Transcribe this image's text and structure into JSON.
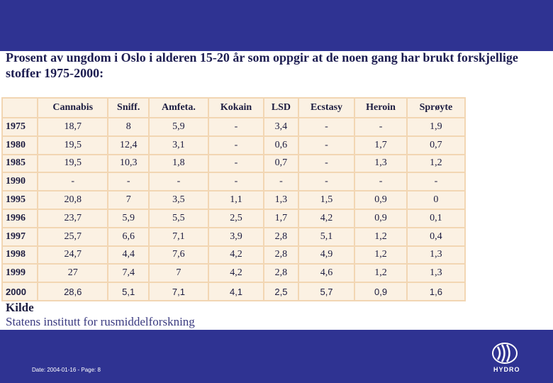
{
  "header": {
    "title": "Prosent av ungdom i Oslo i alderen 15-20 år som oppgir at de noen gang har brukt forskjellige stoffer 1975-2000:"
  },
  "table": {
    "columns": [
      "Cannabis",
      "Sniff.",
      "Amfeta.",
      "Kokain",
      "LSD",
      "Ecstasy",
      "Heroin",
      "Sprøyte"
    ],
    "rows": [
      [
        "1975",
        "18,7",
        "8",
        "5,9",
        "-",
        "3,4",
        "-",
        "-",
        "1,9"
      ],
      [
        "1980",
        "19,5",
        "12,4",
        "3,1",
        "-",
        "0,6",
        "-",
        "1,7",
        "0,7"
      ],
      [
        "1985",
        "19,5",
        "10,3",
        "1,8",
        "-",
        "0,7",
        "-",
        "1,3",
        "1,2"
      ],
      [
        "1990",
        "-",
        "-",
        "-",
        "-",
        "-",
        "-",
        "-",
        "-"
      ],
      [
        "1995",
        "20,8",
        "7",
        "3,5",
        "1,1",
        "1,3",
        "1,5",
        "0,9",
        "0"
      ],
      [
        "1996",
        "23,7",
        "5,9",
        "5,5",
        "2,5",
        "1,7",
        "4,2",
        "0,9",
        "0,1"
      ],
      [
        "1997",
        "25,7",
        "6,6",
        "7,1",
        "3,9",
        "2,8",
        "5,1",
        "1,2",
        "0,4"
      ],
      [
        "1998",
        "24,7",
        "4,4",
        "7,6",
        "4,2",
        "2,8",
        "4,9",
        "1,2",
        "1,3"
      ],
      [
        "1999",
        "27",
        "7,4",
        "7",
        "4,2",
        "2,8",
        "4,6",
        "1,2",
        "1,3"
      ],
      [
        "2000",
        "28,6",
        "5,1",
        "7,1",
        "4,1",
        "2,5",
        "5,7",
        "0,9",
        "1,6"
      ]
    ]
  },
  "source": {
    "heading": "Kilde",
    "text": "Statens institutt for rusmiddelforskning"
  },
  "footer": {
    "text": "Date: 2004-01-16 - Page: 8",
    "logo": "HYDRO"
  }
}
